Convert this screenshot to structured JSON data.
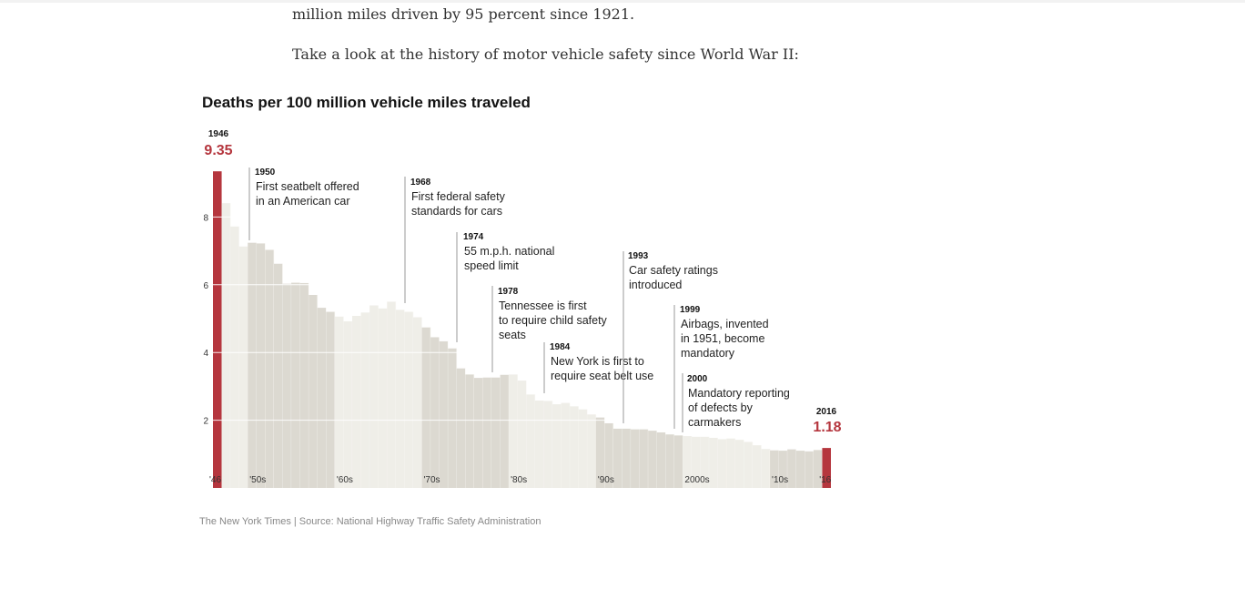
{
  "article": {
    "p1": "million miles driven by 95 percent since 1921.",
    "p2": "Take a look at the history of motor vehicle safety since World War II:"
  },
  "credit": {
    "publisher": "The New York Times",
    "separator": "|",
    "source": "Source: National Highway Traffic Safety Administration"
  },
  "chart_data": {
    "type": "bar",
    "title": "Deaths per 100 million vehicle miles traveled",
    "xlabel": "",
    "ylabel": "",
    "ylim": [
      0,
      10
    ],
    "yticks": [
      "2",
      "4",
      "6",
      "8"
    ],
    "ytick_values": [
      2,
      4,
      6,
      8
    ],
    "grid": true,
    "years": [
      1946,
      1947,
      1948,
      1949,
      1950,
      1951,
      1952,
      1953,
      1954,
      1955,
      1956,
      1957,
      1958,
      1959,
      1960,
      1961,
      1962,
      1963,
      1964,
      1965,
      1966,
      1967,
      1968,
      1969,
      1970,
      1971,
      1972,
      1973,
      1974,
      1975,
      1976,
      1977,
      1978,
      1979,
      1980,
      1981,
      1982,
      1983,
      1984,
      1985,
      1986,
      1987,
      1988,
      1989,
      1990,
      1991,
      1992,
      1993,
      1994,
      1995,
      1996,
      1997,
      1998,
      1999,
      2000,
      2001,
      2002,
      2003,
      2004,
      2005,
      2006,
      2007,
      2008,
      2009,
      2010,
      2011,
      2012,
      2013,
      2014,
      2015,
      2016
    ],
    "values": [
      9.35,
      8.41,
      7.72,
      7.13,
      7.24,
      7.22,
      7.03,
      6.62,
      6.03,
      6.06,
      6.05,
      5.7,
      5.32,
      5.2,
      5.06,
      4.92,
      5.08,
      5.18,
      5.39,
      5.3,
      5.5,
      5.26,
      5.2,
      5.04,
      4.74,
      4.45,
      4.33,
      4.12,
      3.53,
      3.35,
      3.25,
      3.26,
      3.26,
      3.34,
      3.35,
      3.17,
      2.76,
      2.58,
      2.57,
      2.47,
      2.51,
      2.41,
      2.32,
      2.17,
      2.08,
      1.91,
      1.75,
      1.75,
      1.73,
      1.73,
      1.69,
      1.64,
      1.58,
      1.55,
      1.53,
      1.51,
      1.51,
      1.48,
      1.44,
      1.46,
      1.42,
      1.36,
      1.26,
      1.15,
      1.11,
      1.1,
      1.14,
      1.1,
      1.08,
      1.12,
      1.18
    ],
    "decade_labels": [
      {
        "label": "'46",
        "year": 1946
      },
      {
        "label": "'50s",
        "year": 1950
      },
      {
        "label": "'60s",
        "year": 1960
      },
      {
        "label": "'70s",
        "year": 1970
      },
      {
        "label": "'80s",
        "year": 1980
      },
      {
        "label": "'90s",
        "year": 1990
      },
      {
        "label": "2000s",
        "year": 2000
      },
      {
        "label": "'10s",
        "year": 2010
      },
      {
        "label": "'16",
        "year": 2016
      }
    ],
    "highlights": [
      {
        "year": "1946",
        "value": "9.35"
      },
      {
        "year": "2016",
        "value": "1.18"
      }
    ],
    "annotations": [
      {
        "year": "1950",
        "text": [
          "First seatbelt offered",
          "in an American car"
        ]
      },
      {
        "year": "1968",
        "text": [
          "First federal safety",
          "standards for cars"
        ]
      },
      {
        "year": "1974",
        "text": [
          "55 m.p.h. national",
          "speed limit"
        ]
      },
      {
        "year": "1978",
        "text": [
          "Tennessee is first",
          "to require child safety",
          "seats"
        ]
      },
      {
        "year": "1984",
        "text": [
          "New York is first to",
          "require seat belt use"
        ]
      },
      {
        "year": "1993",
        "text": [
          "Car safety ratings",
          "introduced"
        ]
      },
      {
        "year": "1999",
        "text": [
          "Airbags, invented",
          "in 1951, become",
          "mandatory"
        ]
      },
      {
        "year": "2000",
        "text": [
          "Mandatory reporting",
          "of defects by",
          "carmakers"
        ]
      }
    ],
    "colors": {
      "highlight": "#b5363e",
      "decade_light": "#efeee8",
      "decade_dark": "#dcd9d1",
      "divider": "#f8f7f4",
      "grid": "#ffffff",
      "annotation_line": "#999999"
    }
  }
}
